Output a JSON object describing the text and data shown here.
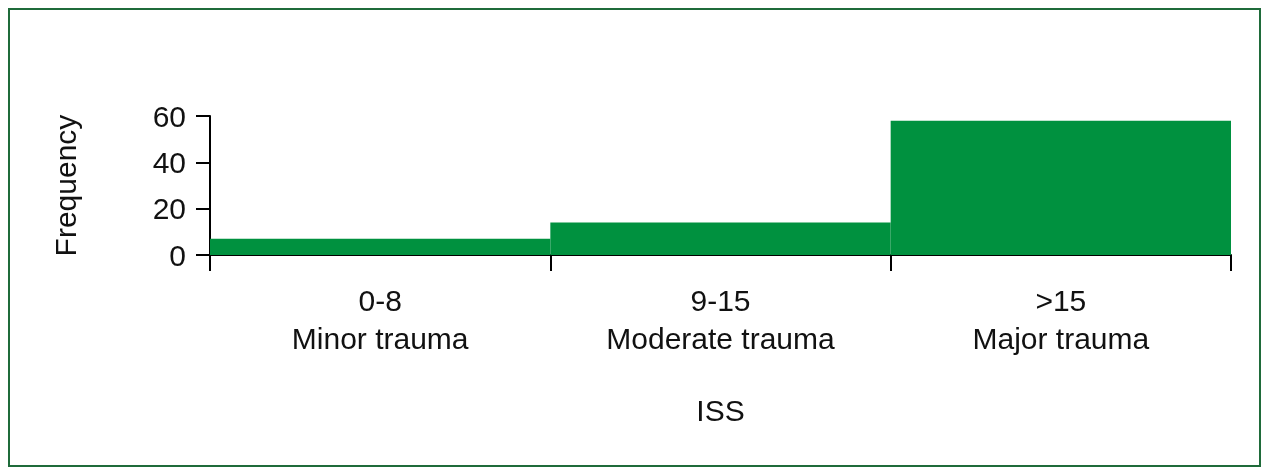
{
  "chart_data": {
    "type": "bar",
    "xlabel": "ISS",
    "ylabel": "Frequency",
    "categories": [
      "0-8\nMinor trauma",
      "9-15\nModerate trauma",
      ">15\nMajor trauma"
    ],
    "values": [
      7,
      14,
      58
    ],
    "color": "#00913f",
    "ylim": [
      0,
      60
    ],
    "yticks": [
      0,
      20,
      40,
      60
    ],
    "grid": false
  }
}
